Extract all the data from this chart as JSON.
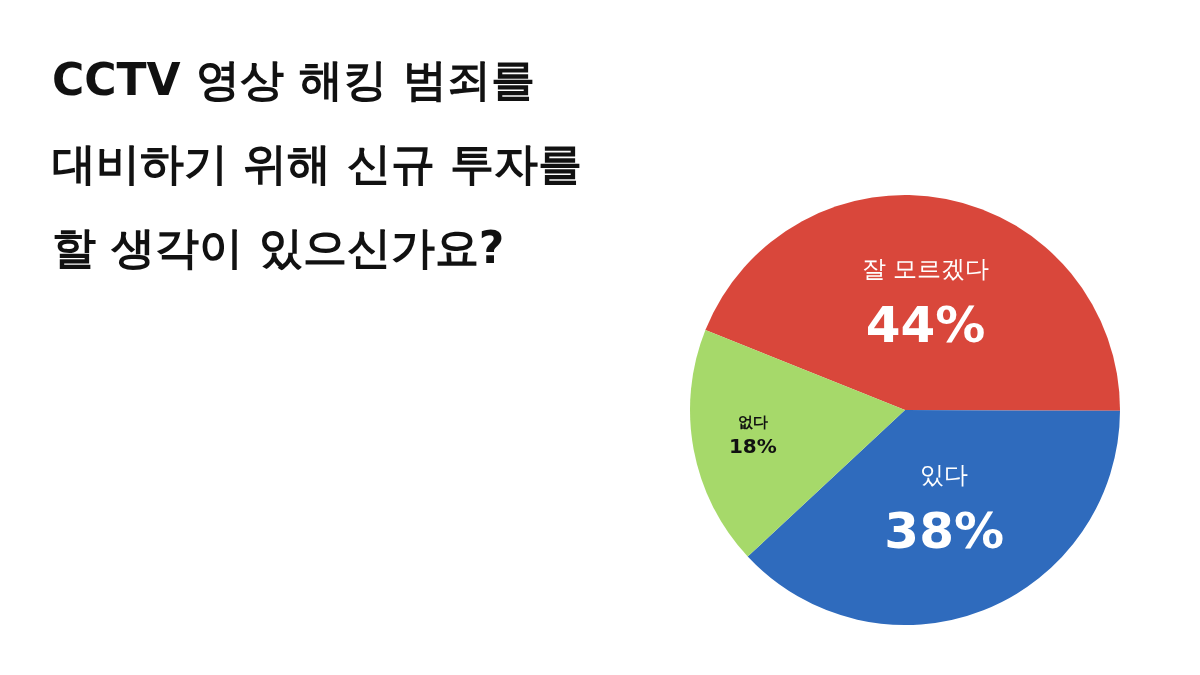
{
  "chart_data": {
    "type": "pie",
    "title": "CCTV 영상 해킹 범죄를 대비하기 위해 신규 투자를 할 생각이 있으신가요?",
    "categories": [
      "잘 모르겠다",
      "있다",
      "없다"
    ],
    "values": [
      44,
      38,
      18
    ],
    "colors": [
      "#d9473b",
      "#2f6bbd",
      "#a6d96a"
    ],
    "value_labels": [
      "44%",
      "38%",
      "18%"
    ]
  }
}
